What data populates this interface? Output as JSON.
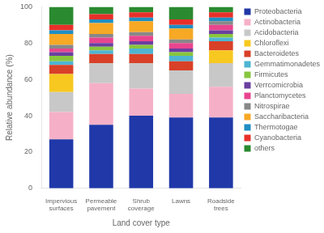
{
  "chart_data": {
    "type": "bar",
    "stacked": true,
    "categories": [
      "Impervious\nsurfaces",
      "Permeable\npavement",
      "Shrub\ncoverage",
      "Lawns",
      "Roadside\ntrees"
    ],
    "xlabel": "Land cover type",
    "ylabel": "Relative abundance (%)",
    "ylim": [
      0,
      100
    ],
    "yticks": [
      0,
      20,
      40,
      60,
      80,
      100
    ],
    "grid": false,
    "legend": "right",
    "series": [
      {
        "name": "Proteobacteria",
        "color": "#2038a8",
        "values": [
          27,
          35,
          40,
          39,
          39
        ]
      },
      {
        "name": "Actinobacteria",
        "color": "#f5b0c8",
        "values": [
          15,
          23,
          15,
          13,
          17
        ]
      },
      {
        "name": "Acidobacteria",
        "color": "#c8c8c8",
        "values": [
          11,
          11,
          14,
          13,
          13
        ]
      },
      {
        "name": "Chloroflexi",
        "color": "#f7c820",
        "values": [
          10,
          0,
          0,
          0,
          7
        ]
      },
      {
        "name": "Bacteroidetes",
        "color": "#d94028",
        "values": [
          5,
          5,
          5,
          5,
          5
        ]
      },
      {
        "name": "Gemmatimonadetes",
        "color": "#4eb5d2",
        "values": [
          2,
          2,
          3,
          3,
          2
        ]
      },
      {
        "name": "Firmicutes",
        "color": "#88c63d",
        "values": [
          3,
          2,
          2,
          2,
          2
        ]
      },
      {
        "name": "Verrcomicrobia",
        "color": "#6a3fa0",
        "values": [
          2,
          2,
          2,
          2,
          2
        ]
      },
      {
        "name": "Planctomycetes",
        "color": "#e8458e",
        "values": [
          2,
          3,
          3,
          3,
          3
        ]
      },
      {
        "name": "Nitrospirae",
        "color": "#888888",
        "values": [
          2,
          2,
          2,
          2,
          2
        ]
      },
      {
        "name": "Saccharibacteria",
        "color": "#f7a824",
        "values": [
          6,
          6,
          6,
          6,
          0
        ]
      },
      {
        "name": "Thermotogae",
        "color": "#1f8ec4",
        "values": [
          2,
          2,
          2,
          2,
          2
        ]
      },
      {
        "name": "Cyanobacteria",
        "color": "#e8302a",
        "values": [
          3,
          3,
          3,
          3,
          3
        ]
      },
      {
        "name": "others",
        "color": "#2a8a30",
        "values": [
          10,
          4,
          3,
          7,
          3
        ]
      }
    ]
  }
}
